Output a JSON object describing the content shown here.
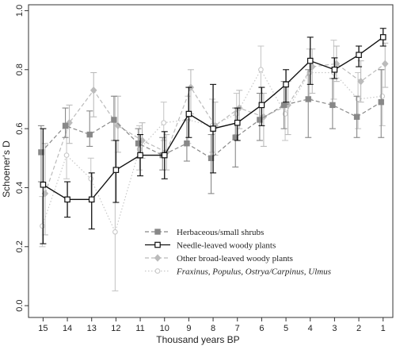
{
  "chart_data": {
    "type": "line",
    "xlabel": "Thousand years BP",
    "ylabel": "Schoener's D",
    "x": [
      15,
      14,
      13,
      12,
      11,
      10,
      9,
      8,
      7,
      6,
      5,
      4,
      3,
      2,
      1
    ],
    "xlim": [
      15.6,
      0.6
    ],
    "ylim": [
      -0.04,
      1.02
    ],
    "yticks": [
      0.0,
      0.2,
      0.4,
      0.6,
      0.8,
      1.0
    ],
    "ytick_labels": [
      "0.0",
      "0.2",
      "0.4",
      "0.6",
      "0.8",
      "1.0"
    ],
    "legend_position": "center",
    "grid": false,
    "series": [
      {
        "name": "Herbaceous/small shrubs",
        "color": "#888888",
        "line_style": "dashed",
        "marker": "filled-square",
        "values": [
          0.52,
          0.61,
          0.58,
          0.63,
          0.55,
          0.51,
          0.55,
          0.5,
          0.57,
          0.63,
          0.68,
          0.7,
          0.68,
          0.64,
          0.69
        ],
        "error_low": [
          0.42,
          0.57,
          0.54,
          0.56,
          0.5,
          0.46,
          0.49,
          0.38,
          0.47,
          0.56,
          0.6,
          0.57,
          0.6,
          0.57,
          0.57
        ],
        "error_high": [
          0.61,
          0.67,
          0.66,
          0.71,
          0.6,
          0.57,
          0.63,
          0.58,
          0.67,
          0.72,
          0.76,
          0.8,
          0.77,
          0.71,
          0.8
        ]
      },
      {
        "name": "Needle-leaved woody plants",
        "color": "#111111",
        "line_style": "solid",
        "marker": "open-square",
        "values": [
          0.41,
          0.36,
          0.36,
          0.46,
          0.51,
          0.51,
          0.65,
          0.6,
          0.62,
          0.68,
          0.75,
          0.83,
          0.8,
          0.85,
          0.91
        ],
        "error_low": [
          0.21,
          0.3,
          0.26,
          0.35,
          0.44,
          0.43,
          0.57,
          0.45,
          0.56,
          0.61,
          0.69,
          0.75,
          0.77,
          0.81,
          0.88
        ],
        "error_high": [
          0.6,
          0.42,
          0.45,
          0.56,
          0.58,
          0.59,
          0.74,
          0.75,
          0.67,
          0.74,
          0.8,
          0.91,
          0.84,
          0.88,
          0.94
        ]
      },
      {
        "name": "Other broad-leaved woody plants",
        "color": "#bbbbbb",
        "line_style": "dashed",
        "marker": "filled-diamond",
        "values": [
          0.38,
          0.62,
          0.73,
          0.61,
          0.56,
          0.52,
          0.74,
          0.61,
          0.67,
          0.64,
          0.68,
          0.81,
          0.82,
          0.76,
          0.82
        ],
        "error_low": [
          0.24,
          0.55,
          0.64,
          0.52,
          0.5,
          0.46,
          0.65,
          0.51,
          0.6,
          0.54,
          0.58,
          0.72,
          0.76,
          0.69,
          0.74
        ],
        "error_high": [
          0.55,
          0.68,
          0.79,
          0.71,
          0.62,
          0.58,
          0.8,
          0.69,
          0.73,
          0.72,
          0.76,
          0.87,
          0.88,
          0.83,
          0.89
        ]
      },
      {
        "name_parts": [
          "Fraxinus,",
          "Populus,",
          "Ostrya/Carpinus,",
          "Ulmus"
        ],
        "color": "#c8c8c8",
        "line_style": "dotted",
        "marker": "open-circle",
        "values": [
          0.27,
          0.51,
          0.43,
          0.25,
          0.53,
          0.62,
          0.63,
          0.61,
          0.65,
          0.8,
          0.65,
          0.79,
          0.79,
          0.7,
          0.71
        ],
        "error_low": [
          0.2,
          0.43,
          0.36,
          0.05,
          0.46,
          0.56,
          0.55,
          0.52,
          0.58,
          0.72,
          0.56,
          0.7,
          0.7,
          0.6,
          0.61
        ],
        "error_high": [
          0.37,
          0.6,
          0.5,
          0.71,
          0.61,
          0.69,
          0.71,
          0.7,
          0.72,
          0.88,
          0.74,
          0.87,
          0.9,
          0.79,
          0.8
        ]
      }
    ]
  }
}
